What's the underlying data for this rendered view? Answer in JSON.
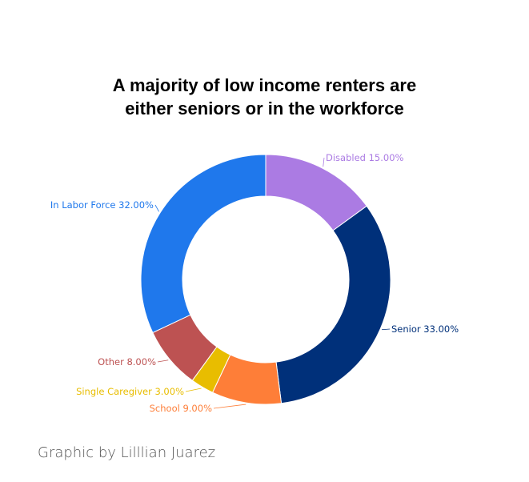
{
  "chart_data": {
    "type": "pie",
    "variant": "donut",
    "title_lines": [
      "A majority of low income renters are",
      "either seniors or in the workforce"
    ],
    "slices": [
      {
        "label": "Disabled",
        "value": 15.0,
        "display": "Disabled 15.00%",
        "color": "#ab7be3"
      },
      {
        "label": "Senior",
        "value": 33.0,
        "display": "Senior 33.00%",
        "color": "#00307a"
      },
      {
        "label": "School",
        "value": 9.0,
        "display": "School 9.00%",
        "color": "#fe7e38"
      },
      {
        "label": "Single Caregiver",
        "value": 3.0,
        "display": "Single Caregiver 3.00%",
        "color": "#e8bd00"
      },
      {
        "label": "Other",
        "value": 8.0,
        "display": "Other 8.00%",
        "color": "#bd5252"
      },
      {
        "label": "In Labor Force",
        "value": 32.0,
        "display": "In Labor Force 32.00%",
        "color": "#1f78ec"
      }
    ]
  },
  "credit": "Graphic by Lilllian Juarez"
}
